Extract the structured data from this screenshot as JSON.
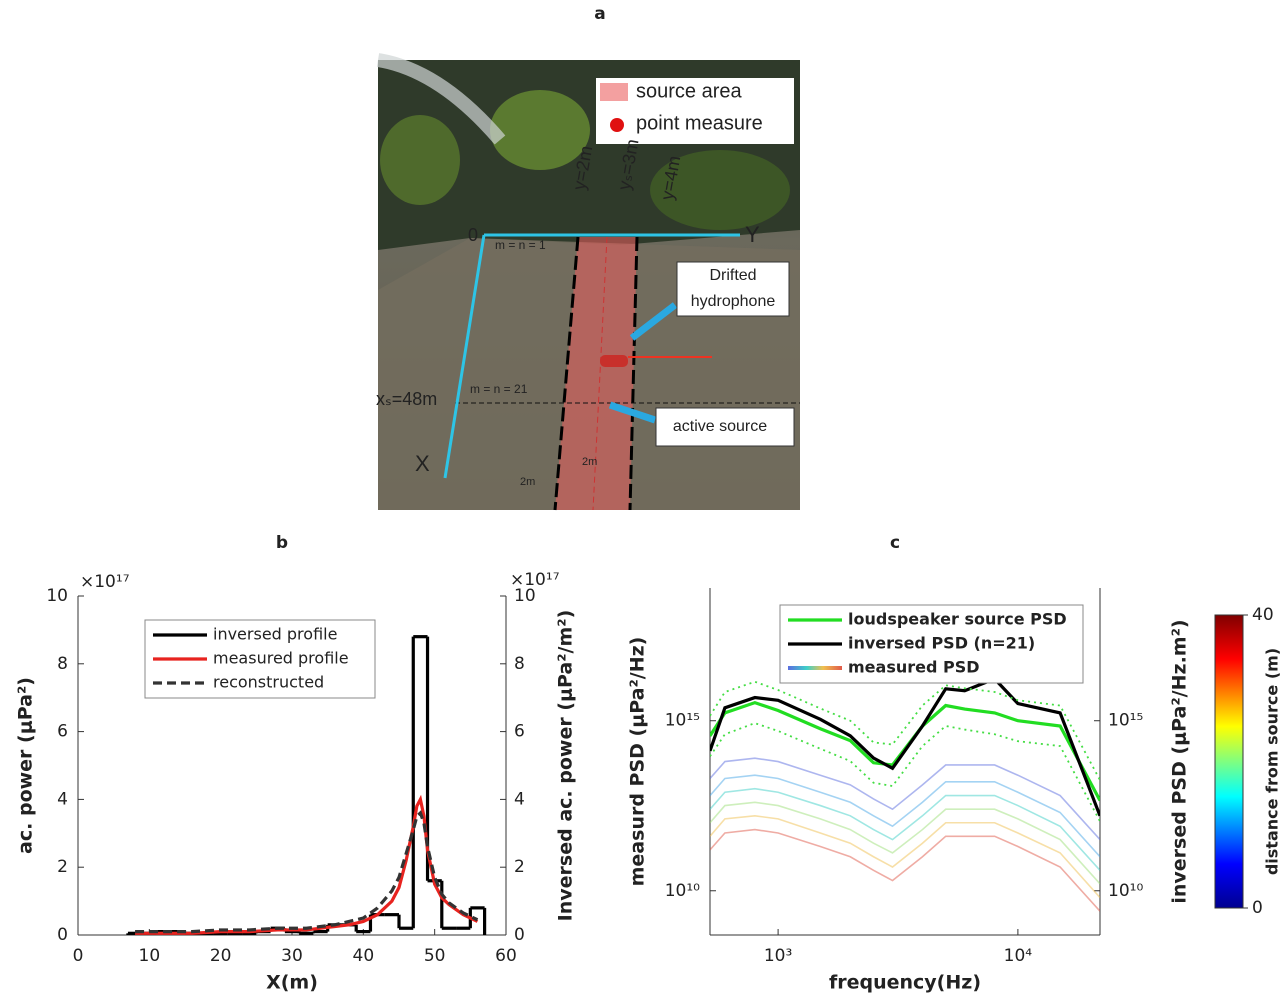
{
  "panel_a": {
    "title": "a",
    "legend": [
      "source area",
      "point measure"
    ],
    "labels": {
      "y_left": "y=2m",
      "y_source": "yₛ=3m",
      "y_right": "y=4m",
      "origin": "0",
      "y_axis": "Y",
      "x_axis": "X",
      "cell_first": "m = n = 1",
      "cell_last": "m = n = 21",
      "x_source": "xₛ=48m",
      "hydrophone": "Drifted hydrophone",
      "source": "active source",
      "cell_width": "2m",
      "cell_height": "2m"
    }
  },
  "chart_data": [
    {
      "type": "line",
      "title": "b",
      "xlabel": "X(m)",
      "ylabel": "ac. power (μPa²)",
      "y2label": "Inversed ac. power (μPa²/m²)",
      "multiplier": "×10¹⁷",
      "xlim": [
        0,
        60
      ],
      "xticks": [
        0,
        10,
        20,
        30,
        40,
        50,
        60
      ],
      "ylim": [
        0,
        10
      ],
      "yticks": [
        0,
        2,
        4,
        6,
        8,
        10
      ],
      "y2lim": [
        0,
        10
      ],
      "y2ticks": [
        0,
        2,
        4,
        6,
        8,
        10
      ],
      "legend": "upper center",
      "series": [
        {
          "name": "inversed profile",
          "color": "#000000",
          "style": "solid",
          "axis": "y2",
          "bins": [
            7,
            9,
            11,
            13,
            15,
            17,
            19,
            21,
            23,
            25,
            27,
            29,
            31,
            33,
            35,
            37,
            39,
            41,
            43,
            45,
            47,
            49,
            51,
            53,
            55,
            57
          ],
          "values": [
            0.05,
            0.05,
            0.1,
            0.1,
            0.05,
            0.05,
            0.05,
            0.05,
            0.05,
            0.1,
            0.2,
            0.1,
            0.05,
            0.1,
            0.3,
            0.3,
            0.1,
            0.6,
            0.6,
            0.2,
            8.8,
            1.6,
            0.2,
            0.2,
            0.8
          ]
        },
        {
          "name": "measured profile",
          "color": "#e8231f",
          "style": "solid",
          "x": [
            8,
            12,
            16,
            20,
            24,
            28,
            32,
            36,
            38,
            40,
            42,
            44,
            45,
            46,
            47,
            47.5,
            48,
            48.5,
            49,
            50,
            51,
            52,
            54,
            56
          ],
          "values": [
            0.05,
            0.05,
            0.05,
            0.1,
            0.1,
            0.15,
            0.15,
            0.25,
            0.3,
            0.4,
            0.6,
            1.0,
            1.4,
            2.2,
            3.2,
            3.8,
            4.0,
            3.5,
            2.5,
            1.5,
            1.1,
            0.9,
            0.6,
            0.4
          ]
        },
        {
          "name": "reconstructed",
          "color": "#333333",
          "style": "dashed",
          "x": [
            8,
            12,
            16,
            20,
            24,
            28,
            32,
            36,
            38,
            40,
            42,
            44,
            45,
            46,
            47,
            47.5,
            48,
            48.5,
            49,
            50,
            51,
            52,
            54,
            56
          ],
          "values": [
            0.1,
            0.1,
            0.1,
            0.15,
            0.15,
            0.2,
            0.2,
            0.3,
            0.4,
            0.5,
            0.8,
            1.3,
            1.7,
            2.4,
            3.1,
            3.5,
            3.6,
            3.3,
            2.6,
            1.7,
            1.2,
            0.95,
            0.65,
            0.45
          ]
        }
      ]
    },
    {
      "type": "line",
      "title": "c",
      "xlabel": "frequency(Hz)",
      "ylabel": "measurd PSD (μPa²/Hz)",
      "y2label": "inversed PSD (μPa²/Hz.m²)",
      "xlog": true,
      "ylog": true,
      "xlim": [
        520,
        22000
      ],
      "xticks": [
        {
          "value": 1000,
          "label": "10³"
        },
        {
          "value": 10000,
          "label": "10⁴"
        }
      ],
      "ylim": [
        500000000.0,
        8e+18
      ],
      "yticks": [
        {
          "value": 10000000000.0,
          "label": "10¹⁰"
        },
        {
          "value": 1000000000000000.0,
          "label": "10¹⁵"
        }
      ],
      "y2lim": [
        500000000.0,
        8e+18
      ],
      "y2ticks": [
        {
          "value": 10000000000.0,
          "label": "10¹⁰"
        },
        {
          "value": 1000000000000000.0,
          "label": "10¹⁵"
        }
      ],
      "legend": "upper center",
      "x": [
        520,
        600,
        800,
        1000,
        1500,
        2000,
        2500,
        3000,
        4000,
        5000,
        6000,
        8000,
        10000,
        15000,
        22000
      ],
      "series": [
        {
          "name": "loudspeaker source PSD",
          "color": "#22dd22",
          "style": "solid",
          "values": [
            360000000000000.0,
            1700000000000000.0,
            3400000000000000.0,
            2000000000000000.0,
            580000000000000.0,
            260000000000000.0,
            58000000000000.0,
            50000000000000.0,
            700000000000000.0,
            2800000000000000.0,
            2200000000000000.0,
            1700000000000000.0,
            1000000000000000.0,
            700000000000000.0,
            4500000000000.0
          ]
        },
        {
          "name": "inversed PSD (n=21)",
          "color": "#000000",
          "style": "solid",
          "axis": "y2",
          "values": [
            130000000000000.0,
            2400000000000000.0,
            4800000000000000.0,
            4000000000000000.0,
            1100000000000000.0,
            360000000000000.0,
            80000000000000.0,
            40000000000000.0,
            700000000000000.0,
            8700000000000000.0,
            7600000000000000.0,
            1.7e+16,
            3200000000000000.0,
            1700000000000000.0,
            1600000000000.0
          ]
        },
        {
          "color": "#44dd44",
          "style": "dotted",
          "values": [
            1400000000000000.0,
            7000000000000000.0,
            1.4e+16,
            8000000000000000.0,
            2300000000000000.0,
            1000000000000000.0,
            230000000000000.0,
            200000000000000.0,
            2800000000000000.0,
            1.1e+16,
            9000000000000000.0,
            7000000000000000.0,
            4000000000000000.0,
            2800000000000000.0,
            18000000000000.0
          ]
        },
        {
          "color": "#44dd44",
          "style": "dotted",
          "values": [
            90000000000000.0,
            400000000000000.0,
            850000000000000.0,
            500000000000000.0,
            150000000000000.0,
            65000000000000.0,
            15000000000000.0,
            12000000000000.0,
            180000000000000.0,
            700000000000000.0,
            550000000000000.0,
            400000000000000.0,
            250000000000000.0,
            180000000000000.0,
            1100000000000.0
          ]
        }
      ],
      "measured": {
        "name": "measured PSD",
        "lines": [
          {
            "color": "#5b6ee0",
            "values": [
              20000000000000.0,
              63000000000000.0,
              79000000000000.0,
              63000000000000.0,
              25000000000000.0,
              13000000000000.0,
              5000000000000.0,
              2500000000000.0,
              13000000000000.0,
              50000000000000.0,
              50000000000000.0,
              50000000000000.0,
              25000000000000.0,
              6300000000000.0,
              320000000000.0
            ]
          },
          {
            "color": "#4aa8e8",
            "values": [
              6300000000000.0,
              20000000000000.0,
              25000000000000.0,
              20000000000000.0,
              7900000000000.0,
              4000000000000.0,
              1600000000000.0,
              790000000000.0,
              4000000000000.0,
              16000000000000.0,
              16000000000000.0,
              16000000000000.0,
              7900000000000.0,
              2000000000000.0,
              100000000000.0
            ]
          },
          {
            "color": "#3fd0c8",
            "values": [
              2500000000000.0,
              7900000000000.0,
              10000000000000.0,
              7900000000000.0,
              3200000000000.0,
              1600000000000.0,
              630000000000.0,
              320000000000.0,
              1600000000000.0,
              6300000000000.0,
              6300000000000.0,
              6300000000000.0,
              3200000000000.0,
              790000000000.0,
              40000000000.0
            ]
          },
          {
            "color": "#9ee07a",
            "values": [
              1000000000000.0,
              3200000000000.0,
              4000000000000.0,
              3200000000000.0,
              1300000000000.0,
              630000000000.0,
              250000000000.0,
              130000000000.0,
              630000000000.0,
              2500000000000.0,
              2500000000000.0,
              2500000000000.0,
              1300000000000.0,
              320000000000.0,
              16000000000.0
            ]
          },
          {
            "color": "#f0c050",
            "values": [
              400000000000.0,
              1300000000000.0,
              1600000000000.0,
              1300000000000.0,
              500000000000.0,
              250000000000.0,
              100000000000.0,
              50000000000.0,
              250000000000.0,
              1000000000000.0,
              1000000000000.0,
              1000000000000.0,
              500000000000.0,
              130000000000.0,
              6300000000.0
            ]
          },
          {
            "color": "#e05a4a",
            "values": [
              160000000000.0,
              500000000000.0,
              630000000000.0,
              500000000000.0,
              200000000000.0,
              100000000000.0,
              40000000000.0,
              20000000000.0,
              100000000000.0,
              400000000000.0,
              400000000000.0,
              400000000000.0,
              200000000000.0,
              50000000000.0,
              2500000000.0
            ]
          }
        ]
      },
      "colorbar": {
        "label": "distance from source (m)",
        "lim": [
          0,
          40
        ],
        "ticks": [
          0,
          40
        ]
      }
    }
  ]
}
